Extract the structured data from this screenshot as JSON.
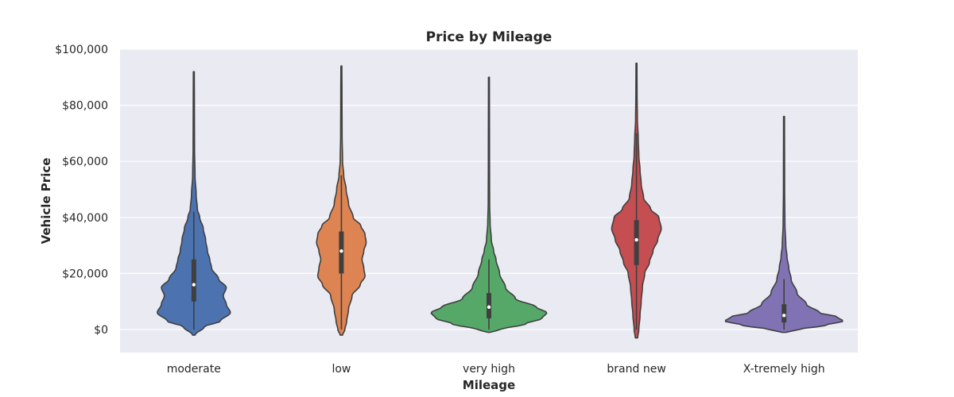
{
  "chart_data": {
    "type": "violin",
    "title": "Price by Mileage",
    "xlabel": "Mileage",
    "ylabel": "Vehicle Price",
    "ylim": [
      -8000,
      100000
    ],
    "y_ticks": [
      0,
      20000,
      40000,
      60000,
      80000,
      100000
    ],
    "y_tick_labels": [
      "$0",
      "$20,000",
      "$40,000",
      "$60,000",
      "$80,000",
      "$100,000"
    ],
    "grid": true,
    "categories": [
      "moderate",
      "low",
      "very high",
      "brand new",
      "X-tremely high"
    ],
    "series": [
      {
        "category": "moderate",
        "color": "#4c72b0",
        "min": -2000,
        "max": 92000,
        "q1": 10000,
        "median": 16000,
        "q3": 25000,
        "whisker_low": 0,
        "whisker_high": 42000,
        "density": [
          [
            -2000,
            0.02
          ],
          [
            1000,
            0.18
          ],
          [
            3000,
            0.45
          ],
          [
            6000,
            0.62
          ],
          [
            9000,
            0.55
          ],
          [
            12000,
            0.5
          ],
          [
            15000,
            0.55
          ],
          [
            18000,
            0.42
          ],
          [
            22000,
            0.3
          ],
          [
            25000,
            0.27
          ],
          [
            28000,
            0.23
          ],
          [
            32000,
            0.2
          ],
          [
            36000,
            0.16
          ],
          [
            40000,
            0.1
          ],
          [
            43000,
            0.06
          ],
          [
            48000,
            0.04
          ],
          [
            55000,
            0.02
          ],
          [
            65000,
            0.012
          ],
          [
            80000,
            0.01
          ],
          [
            92000,
            0.008
          ]
        ]
      },
      {
        "category": "low",
        "color": "#dd8452",
        "min": -2000,
        "max": 94000,
        "q1": 20000,
        "median": 28000,
        "q3": 35000,
        "whisker_low": 0,
        "whisker_high": 55000,
        "density": [
          [
            -2000,
            0.02
          ],
          [
            0,
            0.06
          ],
          [
            3000,
            0.09
          ],
          [
            7000,
            0.12
          ],
          [
            12000,
            0.18
          ],
          [
            16000,
            0.32
          ],
          [
            19000,
            0.4
          ],
          [
            22000,
            0.38
          ],
          [
            25000,
            0.35
          ],
          [
            28000,
            0.38
          ],
          [
            31000,
            0.42
          ],
          [
            34000,
            0.4
          ],
          [
            37000,
            0.33
          ],
          [
            40000,
            0.2
          ],
          [
            45000,
            0.12
          ],
          [
            50000,
            0.08
          ],
          [
            55000,
            0.04
          ],
          [
            60000,
            0.02
          ],
          [
            70000,
            0.012
          ],
          [
            85000,
            0.01
          ],
          [
            94000,
            0.008
          ]
        ]
      },
      {
        "category": "very high",
        "color": "#55a868",
        "min": -1000,
        "max": 90000,
        "q1": 4000,
        "median": 8000,
        "q3": 13000,
        "whisker_low": 0,
        "whisker_high": 25000,
        "density": [
          [
            -1000,
            0.02
          ],
          [
            0,
            0.2
          ],
          [
            2000,
            0.62
          ],
          [
            4000,
            0.9
          ],
          [
            6000,
            0.98
          ],
          [
            8000,
            0.8
          ],
          [
            11000,
            0.45
          ],
          [
            15000,
            0.28
          ],
          [
            20000,
            0.18
          ],
          [
            25000,
            0.12
          ],
          [
            28000,
            0.08
          ],
          [
            32000,
            0.04
          ],
          [
            38000,
            0.02
          ],
          [
            45000,
            0.012
          ],
          [
            60000,
            0.01
          ],
          [
            90000,
            0.008
          ]
        ]
      },
      {
        "category": "brand new",
        "color": "#c44e52",
        "min": -3000,
        "max": 95000,
        "q1": 23000,
        "median": 32000,
        "q3": 39000,
        "whisker_low": 0,
        "whisker_high": 70000,
        "density": [
          [
            -3000,
            0.02
          ],
          [
            0,
            0.04
          ],
          [
            5000,
            0.06
          ],
          [
            10000,
            0.08
          ],
          [
            15000,
            0.1
          ],
          [
            20000,
            0.14
          ],
          [
            24000,
            0.22
          ],
          [
            28000,
            0.28
          ],
          [
            32000,
            0.36
          ],
          [
            36000,
            0.42
          ],
          [
            40000,
            0.38
          ],
          [
            43000,
            0.24
          ],
          [
            47000,
            0.12
          ],
          [
            52000,
            0.08
          ],
          [
            57000,
            0.06
          ],
          [
            62000,
            0.04
          ],
          [
            68000,
            0.03
          ],
          [
            75000,
            0.015
          ],
          [
            85000,
            0.01
          ],
          [
            95000,
            0.008
          ]
        ]
      },
      {
        "category": "X-tremely high",
        "color": "#8172b3",
        "min": -1000,
        "max": 76000,
        "q1": 2500,
        "median": 5000,
        "q3": 9000,
        "whisker_low": 0,
        "whisker_high": 18000,
        "density": [
          [
            -1000,
            0.04
          ],
          [
            0,
            0.25
          ],
          [
            1500,
            0.7
          ],
          [
            3000,
            1.0
          ],
          [
            4500,
            0.9
          ],
          [
            6000,
            0.6
          ],
          [
            9000,
            0.38
          ],
          [
            13000,
            0.22
          ],
          [
            18000,
            0.12
          ],
          [
            22000,
            0.08
          ],
          [
            26000,
            0.05
          ],
          [
            30000,
            0.03
          ],
          [
            38000,
            0.015
          ],
          [
            50000,
            0.01
          ],
          [
            76000,
            0.008
          ]
        ]
      }
    ]
  }
}
